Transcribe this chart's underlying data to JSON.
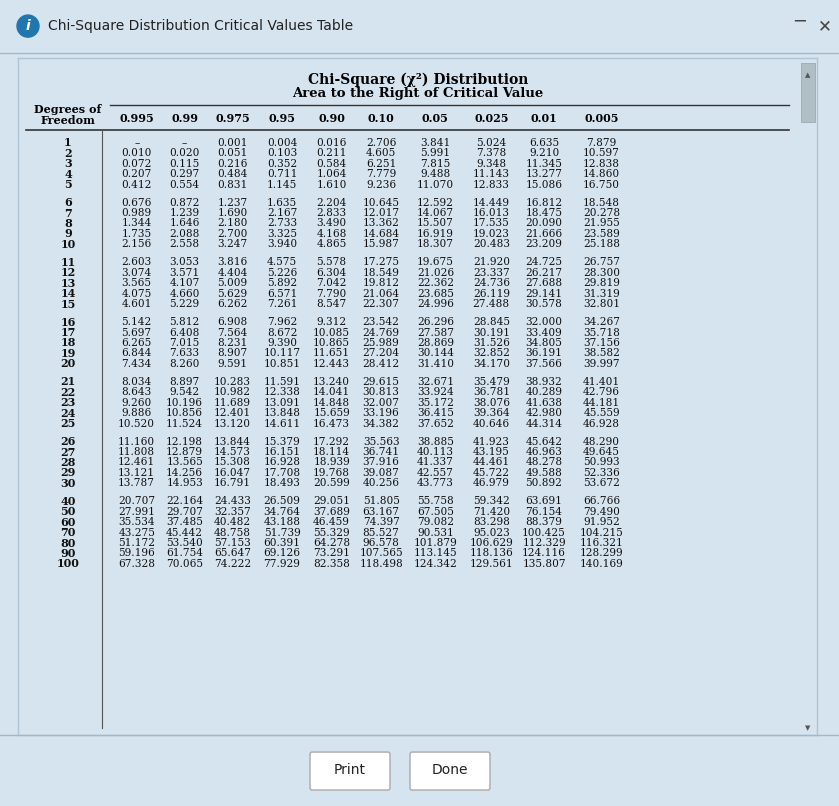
{
  "title_line1": "Chi-Square (χ²) Distribution",
  "title_line2": "Area to the Right of Critical Value",
  "columns": [
    "0.995",
    "0.99",
    "0.975",
    "0.95",
    "0.90",
    "0.10",
    "0.05",
    "0.025",
    "0.01",
    "0.005"
  ],
  "rows": [
    {
      "df": "1",
      "vals": [
        "–",
        "–",
        "0.001",
        "0.004",
        "0.016",
        "2.706",
        "3.841",
        "5.024",
        "6.635",
        "7.879"
      ]
    },
    {
      "df": "2",
      "vals": [
        "0.010",
        "0.020",
        "0.051",
        "0.103",
        "0.211",
        "4.605",
        "5.991",
        "7.378",
        "9.210",
        "10.597"
      ]
    },
    {
      "df": "3",
      "vals": [
        "0.072",
        "0.115",
        "0.216",
        "0.352",
        "0.584",
        "6.251",
        "7.815",
        "9.348",
        "11.345",
        "12.838"
      ]
    },
    {
      "df": "4",
      "vals": [
        "0.207",
        "0.297",
        "0.484",
        "0.711",
        "1.064",
        "7.779",
        "9.488",
        "11.143",
        "13.277",
        "14.860"
      ]
    },
    {
      "df": "5",
      "vals": [
        "0.412",
        "0.554",
        "0.831",
        "1.145",
        "1.610",
        "9.236",
        "11.070",
        "12.833",
        "15.086",
        "16.750"
      ]
    },
    {
      "df": "6",
      "vals": [
        "0.676",
        "0.872",
        "1.237",
        "1.635",
        "2.204",
        "10.645",
        "12.592",
        "14.449",
        "16.812",
        "18.548"
      ]
    },
    {
      "df": "7",
      "vals": [
        "0.989",
        "1.239",
        "1.690",
        "2.167",
        "2.833",
        "12.017",
        "14.067",
        "16.013",
        "18.475",
        "20.278"
      ]
    },
    {
      "df": "8",
      "vals": [
        "1.344",
        "1.646",
        "2.180",
        "2.733",
        "3.490",
        "13.362",
        "15.507",
        "17.535",
        "20.090",
        "21.955"
      ]
    },
    {
      "df": "9",
      "vals": [
        "1.735",
        "2.088",
        "2.700",
        "3.325",
        "4.168",
        "14.684",
        "16.919",
        "19.023",
        "21.666",
        "23.589"
      ]
    },
    {
      "df": "10",
      "vals": [
        "2.156",
        "2.558",
        "3.247",
        "3.940",
        "4.865",
        "15.987",
        "18.307",
        "20.483",
        "23.209",
        "25.188"
      ]
    },
    {
      "df": "11",
      "vals": [
        "2.603",
        "3.053",
        "3.816",
        "4.575",
        "5.578",
        "17.275",
        "19.675",
        "21.920",
        "24.725",
        "26.757"
      ]
    },
    {
      "df": "12",
      "vals": [
        "3.074",
        "3.571",
        "4.404",
        "5.226",
        "6.304",
        "18.549",
        "21.026",
        "23.337",
        "26.217",
        "28.300"
      ]
    },
    {
      "df": "13",
      "vals": [
        "3.565",
        "4.107",
        "5.009",
        "5.892",
        "7.042",
        "19.812",
        "22.362",
        "24.736",
        "27.688",
        "29.819"
      ]
    },
    {
      "df": "14",
      "vals": [
        "4.075",
        "4.660",
        "5.629",
        "6.571",
        "7.790",
        "21.064",
        "23.685",
        "26.119",
        "29.141",
        "31.319"
      ]
    },
    {
      "df": "15",
      "vals": [
        "4.601",
        "5.229",
        "6.262",
        "7.261",
        "8.547",
        "22.307",
        "24.996",
        "27.488",
        "30.578",
        "32.801"
      ]
    },
    {
      "df": "16",
      "vals": [
        "5.142",
        "5.812",
        "6.908",
        "7.962",
        "9.312",
        "23.542",
        "26.296",
        "28.845",
        "32.000",
        "34.267"
      ]
    },
    {
      "df": "17",
      "vals": [
        "5.697",
        "6.408",
        "7.564",
        "8.672",
        "10.085",
        "24.769",
        "27.587",
        "30.191",
        "33.409",
        "35.718"
      ]
    },
    {
      "df": "18",
      "vals": [
        "6.265",
        "7.015",
        "8.231",
        "9.390",
        "10.865",
        "25.989",
        "28.869",
        "31.526",
        "34.805",
        "37.156"
      ]
    },
    {
      "df": "19",
      "vals": [
        "6.844",
        "7.633",
        "8.907",
        "10.117",
        "11.651",
        "27.204",
        "30.144",
        "32.852",
        "36.191",
        "38.582"
      ]
    },
    {
      "df": "20",
      "vals": [
        "7.434",
        "8.260",
        "9.591",
        "10.851",
        "12.443",
        "28.412",
        "31.410",
        "34.170",
        "37.566",
        "39.997"
      ]
    },
    {
      "df": "21",
      "vals": [
        "8.034",
        "8.897",
        "10.283",
        "11.591",
        "13.240",
        "29.615",
        "32.671",
        "35.479",
        "38.932",
        "41.401"
      ]
    },
    {
      "df": "22",
      "vals": [
        "8.643",
        "9.542",
        "10.982",
        "12.338",
        "14.041",
        "30.813",
        "33.924",
        "36.781",
        "40.289",
        "42.796"
      ]
    },
    {
      "df": "23",
      "vals": [
        "9.260",
        "10.196",
        "11.689",
        "13.091",
        "14.848",
        "32.007",
        "35.172",
        "38.076",
        "41.638",
        "44.181"
      ]
    },
    {
      "df": "24",
      "vals": [
        "9.886",
        "10.856",
        "12.401",
        "13.848",
        "15.659",
        "33.196",
        "36.415",
        "39.364",
        "42.980",
        "45.559"
      ]
    },
    {
      "df": "25",
      "vals": [
        "10.520",
        "11.524",
        "13.120",
        "14.611",
        "16.473",
        "34.382",
        "37.652",
        "40.646",
        "44.314",
        "46.928"
      ]
    },
    {
      "df": "26",
      "vals": [
        "11.160",
        "12.198",
        "13.844",
        "15.379",
        "17.292",
        "35.563",
        "38.885",
        "41.923",
        "45.642",
        "48.290"
      ]
    },
    {
      "df": "27",
      "vals": [
        "11.808",
        "12.879",
        "14.573",
        "16.151",
        "18.114",
        "36.741",
        "40.113",
        "43.195",
        "46.963",
        "49.645"
      ]
    },
    {
      "df": "28",
      "vals": [
        "12.461",
        "13.565",
        "15.308",
        "16.928",
        "18.939",
        "37.916",
        "41.337",
        "44.461",
        "48.278",
        "50.993"
      ]
    },
    {
      "df": "29",
      "vals": [
        "13.121",
        "14.256",
        "16.047",
        "17.708",
        "19.768",
        "39.087",
        "42.557",
        "45.722",
        "49.588",
        "52.336"
      ]
    },
    {
      "df": "30",
      "vals": [
        "13.787",
        "14.953",
        "16.791",
        "18.493",
        "20.599",
        "40.256",
        "43.773",
        "46.979",
        "50.892",
        "53.672"
      ]
    },
    {
      "df": "40",
      "vals": [
        "20.707",
        "22.164",
        "24.433",
        "26.509",
        "29.051",
        "51.805",
        "55.758",
        "59.342",
        "63.691",
        "66.766"
      ]
    },
    {
      "df": "50",
      "vals": [
        "27.991",
        "29.707",
        "32.357",
        "34.764",
        "37.689",
        "63.167",
        "67.505",
        "71.420",
        "76.154",
        "79.490"
      ]
    },
    {
      "df": "60",
      "vals": [
        "35.534",
        "37.485",
        "40.482",
        "43.188",
        "46.459",
        "74.397",
        "79.082",
        "83.298",
        "88.379",
        "91.952"
      ]
    },
    {
      "df": "70",
      "vals": [
        "43.275",
        "45.442",
        "48.758",
        "51.739",
        "55.329",
        "85.527",
        "90.531",
        "95.023",
        "100.425",
        "104.215"
      ]
    },
    {
      "df": "80",
      "vals": [
        "51.172",
        "53.540",
        "57.153",
        "60.391",
        "64.278",
        "96.578",
        "101.879",
        "106.629",
        "112.329",
        "116.321"
      ]
    },
    {
      "df": "90",
      "vals": [
        "59.196",
        "61.754",
        "65.647",
        "69.126",
        "73.291",
        "107.565",
        "113.145",
        "118.136",
        "124.116",
        "128.299"
      ]
    },
    {
      "df": "100",
      "vals": [
        "67.328",
        "70.065",
        "74.222",
        "77.929",
        "82.358",
        "118.498",
        "124.342",
        "129.561",
        "135.807",
        "140.169"
      ]
    }
  ],
  "window_title": "Chi-Square Distribution Critical Values Table",
  "button_print": "Print",
  "button_done": "Done",
  "header_bg": "#dce8f4",
  "window_bg": "#d6e4f0",
  "content_bg": "#ffffff",
  "title_text_color": "#111111",
  "row_text_color": "#111111"
}
